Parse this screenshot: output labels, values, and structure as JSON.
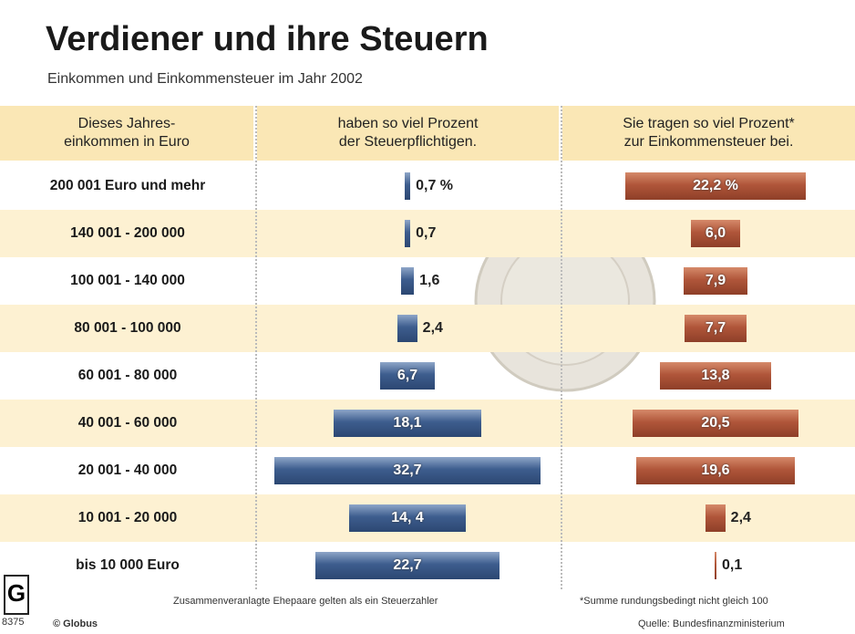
{
  "chart_data": {
    "type": "bar",
    "title": "Verdiener und ihre Steuern",
    "subtitle": "Einkommen und Einkommensteuer im Jahr 2002",
    "category_header": "Dieses Jahres-\neinkommen in Euro",
    "categories": [
      "200 001 Euro und mehr",
      "140 001 - 200 000",
      "100 001 - 140 000",
      "80 001 - 100 000",
      "60 001 - 80 000",
      "40 001 - 60 000",
      "20 001 - 40 000",
      "10 001 - 20 000",
      "bis 10 000 Euro"
    ],
    "series": [
      {
        "name": "haben so viel Prozent\nder Steuerpflichtigen.",
        "color": "#3d5d8e",
        "values": [
          0.7,
          0.7,
          1.6,
          2.4,
          6.7,
          18.1,
          32.7,
          14.4,
          22.7
        ],
        "value_labels": [
          "0,7 %",
          "0,7",
          "1,6",
          "2,4",
          "6,7",
          "18,1",
          "32,7",
          "14, 4",
          "22,7"
        ]
      },
      {
        "name": "Sie tragen so viel Prozent*\nzur Einkommensteuer bei.",
        "color": "#b0563a",
        "values": [
          22.2,
          6.0,
          7.9,
          7.7,
          13.8,
          20.5,
          19.6,
          2.4,
          0.1
        ],
        "value_labels": [
          "22,2 %",
          "6,0",
          "7,9",
          "7,7",
          "13,8",
          "20,5",
          "19,6",
          "2,4",
          "0,1"
        ]
      }
    ],
    "notes": [
      "Zusammenveranlagte Ehepaare gelten als ein Steuerzahler",
      "*Summe rundungsbedingt nicht gleich 100"
    ],
    "source": "Quelle: Bundesfinanzministerium",
    "copyright": "© Globus",
    "graphic_number": "8375"
  }
}
